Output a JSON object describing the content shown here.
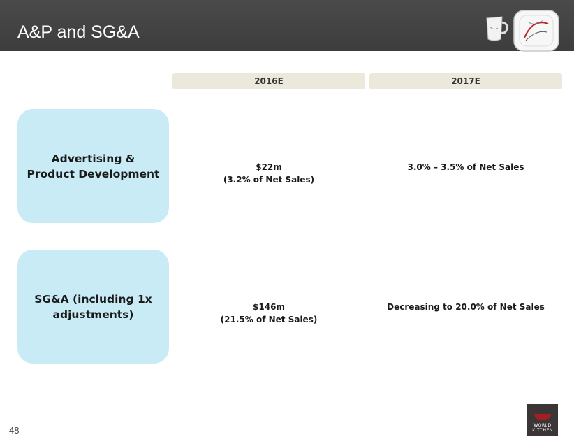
{
  "header": {
    "title": "A&P and SG&A"
  },
  "columns": [
    "2016E",
    "2017E"
  ],
  "rows": [
    {
      "label_line1": "Advertising &",
      "label_line2": "Product Development",
      "y2016_line1": "$22m",
      "y2016_line2": "(3.2% of Net Sales)",
      "y2017": "3.0% – 3.5% of Net Sales"
    },
    {
      "label_line1": "SG&A (including 1x",
      "label_line2": "adjustments)",
      "y2016_line1": "$146m",
      "y2016_line2": "(21.5% of Net Sales)",
      "y2017": "Decreasing to 20.0% of Net Sales"
    }
  ],
  "footer": {
    "page_number": "48",
    "logo_line1": "WORLD",
    "logo_line2": "KITCHEN"
  },
  "colors": {
    "header_bg": "#444444",
    "column_header_bg": "#ece8dc",
    "row_box_bg": "#c9ebf5",
    "logo_accent": "#a32020"
  }
}
